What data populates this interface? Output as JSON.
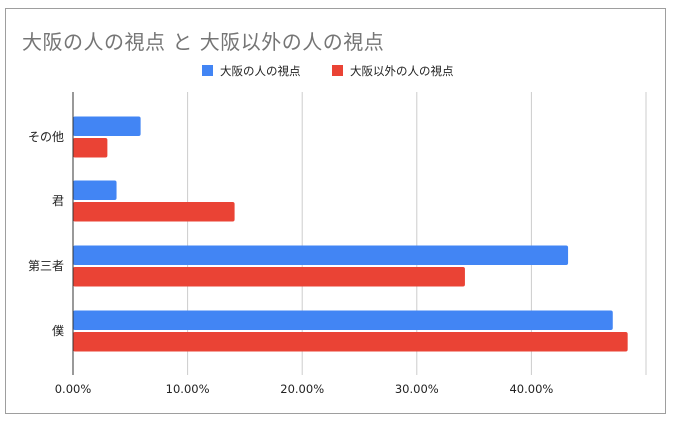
{
  "chart_data": {
    "type": "bar",
    "orientation": "horizontal",
    "title": "大阪の人の視点 と 大阪以外の人の視点",
    "categories": [
      "その他",
      "君",
      "第三者",
      "僕"
    ],
    "series": [
      {
        "name": "大阪の人の視点",
        "color": "#4285f4",
        "values": [
          5.9,
          3.8,
          43.2,
          47.1
        ]
      },
      {
        "name": "大阪以外の人の視点",
        "color": "#ea4335",
        "values": [
          3.0,
          14.1,
          34.2,
          48.4
        ]
      }
    ],
    "x_ticks": [
      "0.00%",
      "10.00%",
      "20.00%",
      "30.00%",
      "40.00%"
    ],
    "xlim": [
      0,
      50
    ],
    "grid": true,
    "legend_position": "top"
  }
}
